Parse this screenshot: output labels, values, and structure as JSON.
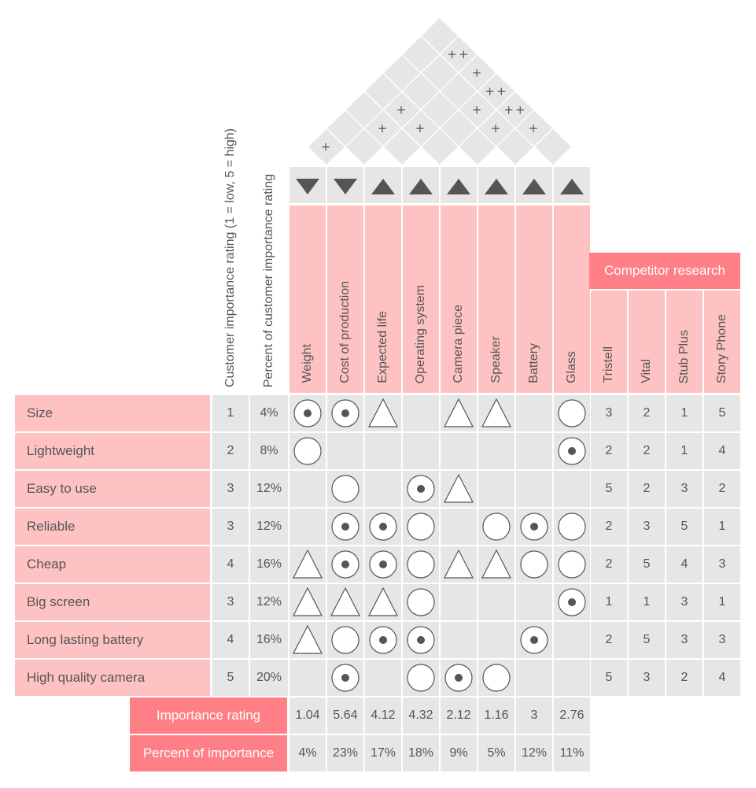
{
  "customer_importance_header": "Customer importance  rating (1 = low, 5 = high)",
  "percent_customer_header": "Percent of customer importance rating",
  "competitor_header": "Competitor research",
  "technical": [
    {
      "name": "Weight",
      "direction": "down"
    },
    {
      "name": "Cost of production",
      "direction": "down"
    },
    {
      "name": "Expected life",
      "direction": "up"
    },
    {
      "name": "Operating system",
      "direction": "up"
    },
    {
      "name": "Camera piece",
      "direction": "up"
    },
    {
      "name": "Speaker",
      "direction": "up"
    },
    {
      "name": "Battery",
      "direction": "up"
    },
    {
      "name": "Glass",
      "direction": "up"
    }
  ],
  "competitors": [
    "Tristell",
    "Vital",
    "Stub Plus",
    "Story Phone"
  ],
  "requirements": [
    {
      "name": "Size",
      "rating": "1",
      "percent": "4%",
      "rel": [
        "strong",
        "strong",
        "weak",
        "",
        "weak",
        "weak",
        "",
        "medium"
      ],
      "comp": [
        "3",
        "2",
        "1",
        "5"
      ]
    },
    {
      "name": "Lightweight",
      "rating": "2",
      "percent": "8%",
      "rel": [
        "medium",
        "",
        "",
        "",
        "",
        "",
        "",
        "strong"
      ],
      "comp": [
        "2",
        "2",
        "1",
        "4"
      ]
    },
    {
      "name": "Easy to use",
      "rating": "3",
      "percent": "12%",
      "rel": [
        "",
        "medium",
        "",
        "strong",
        "weak",
        "",
        "",
        ""
      ],
      "comp": [
        "5",
        "2",
        "3",
        "2"
      ]
    },
    {
      "name": "Reliable",
      "rating": "3",
      "percent": "12%",
      "rel": [
        "",
        "strong",
        "strong",
        "medium",
        "",
        "medium",
        "strong",
        "medium"
      ],
      "comp": [
        "2",
        "3",
        "5",
        "1"
      ]
    },
    {
      "name": "Cheap",
      "rating": "4",
      "percent": "16%",
      "rel": [
        "weak",
        "strong",
        "strong",
        "medium",
        "weak",
        "weak",
        "medium",
        "medium"
      ],
      "comp": [
        "2",
        "5",
        "4",
        "3"
      ]
    },
    {
      "name": "Big screen",
      "rating": "3",
      "percent": "12%",
      "rel": [
        "weak",
        "weak",
        "weak",
        "medium",
        "",
        "",
        "",
        "strong"
      ],
      "comp": [
        "1",
        "1",
        "3",
        "1"
      ]
    },
    {
      "name": "Long lasting battery",
      "rating": "4",
      "percent": "16%",
      "rel": [
        "weak",
        "medium",
        "strong",
        "strong",
        "",
        "",
        "strong",
        ""
      ],
      "comp": [
        "2",
        "5",
        "3",
        "3"
      ]
    },
    {
      "name": "High quality camera",
      "rating": "5",
      "percent": "20%",
      "rel": [
        "",
        "strong",
        "",
        "medium",
        "strong",
        "medium",
        "",
        ""
      ],
      "comp": [
        "5",
        "3",
        "2",
        "4"
      ]
    }
  ],
  "importance_rating_label": "Importance rating",
  "importance_rating": [
    "1.04",
    "5.64",
    "4.12",
    "4.32",
    "2.12",
    "1.16",
    "3",
    "2.76"
  ],
  "percent_importance_label": "Percent of importance",
  "percent_importance": [
    "4%",
    "23%",
    "17%",
    "18%",
    "9%",
    "5%",
    "12%",
    "11%"
  ],
  "roof_correlations": [
    {
      "i": 0,
      "j": 1,
      "symbol": "+"
    },
    {
      "i": 1,
      "j": 3,
      "symbol": "+"
    },
    {
      "i": 1,
      "j": 4,
      "symbol": "+"
    },
    {
      "i": 2,
      "j": 4,
      "symbol": "+"
    },
    {
      "i": 1,
      "j": 7,
      "symbol": "++"
    },
    {
      "i": 2,
      "j": 7,
      "symbol": "+"
    },
    {
      "i": 3,
      "j": 6,
      "symbol": "+"
    },
    {
      "i": 3,
      "j": 7,
      "symbol": "++"
    },
    {
      "i": 4,
      "j": 6,
      "symbol": "+"
    },
    {
      "i": 4,
      "j": 7,
      "symbol": "++"
    },
    {
      "i": 5,
      "j": 7,
      "symbol": "+"
    }
  ],
  "colors": {
    "pink": "#ffc2c2",
    "coral": "#ff7f86",
    "gray": "#e6e6e6",
    "symbol": "#555555"
  }
}
